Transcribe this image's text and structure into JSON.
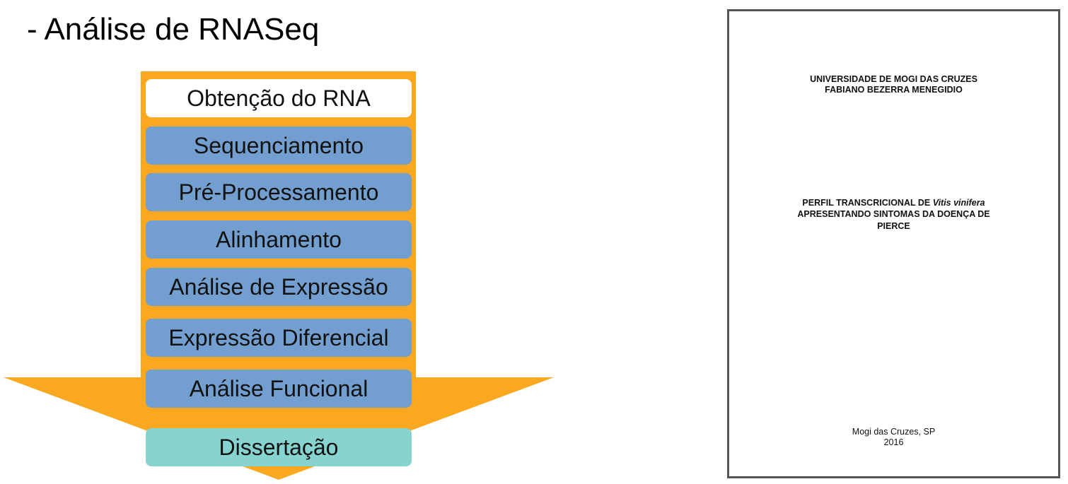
{
  "slide": {
    "title": "- Análise de RNASeq"
  },
  "flow": {
    "arrow_color": "#f9a81f",
    "steps": [
      {
        "label": "Obtenção do RNA",
        "color": "#ffffff"
      },
      {
        "label": "Sequenciamento",
        "color": "#729fcf"
      },
      {
        "label": "Pré-Processamento",
        "color": "#729fcf"
      },
      {
        "label": "Alinhamento",
        "color": "#729fcf"
      },
      {
        "label": "Análise de Expressão",
        "color": "#729fcf"
      },
      {
        "label": "Expressão Diferencial",
        "color": "#729fcf"
      },
      {
        "label": "Análise Funcional",
        "color": "#729fcf"
      }
    ],
    "result": {
      "label": "Dissertação",
      "color": "#86d3d0"
    }
  },
  "document": {
    "university": "UNIVERSIDADE DE MOGI DAS CRUZES",
    "author": "FABIANO BEZERRA MENEGIDIO",
    "title_line1_prefix": "PERFIL TRANSCRICIONAL DE ",
    "title_line1_species": "Vitis vinifera",
    "title_line2": "APRESENTANDO SINTOMAS DA DOENÇA DE",
    "title_line3": "PIERCE",
    "city": "Mogi das Cruzes, SP",
    "year": "2016"
  }
}
